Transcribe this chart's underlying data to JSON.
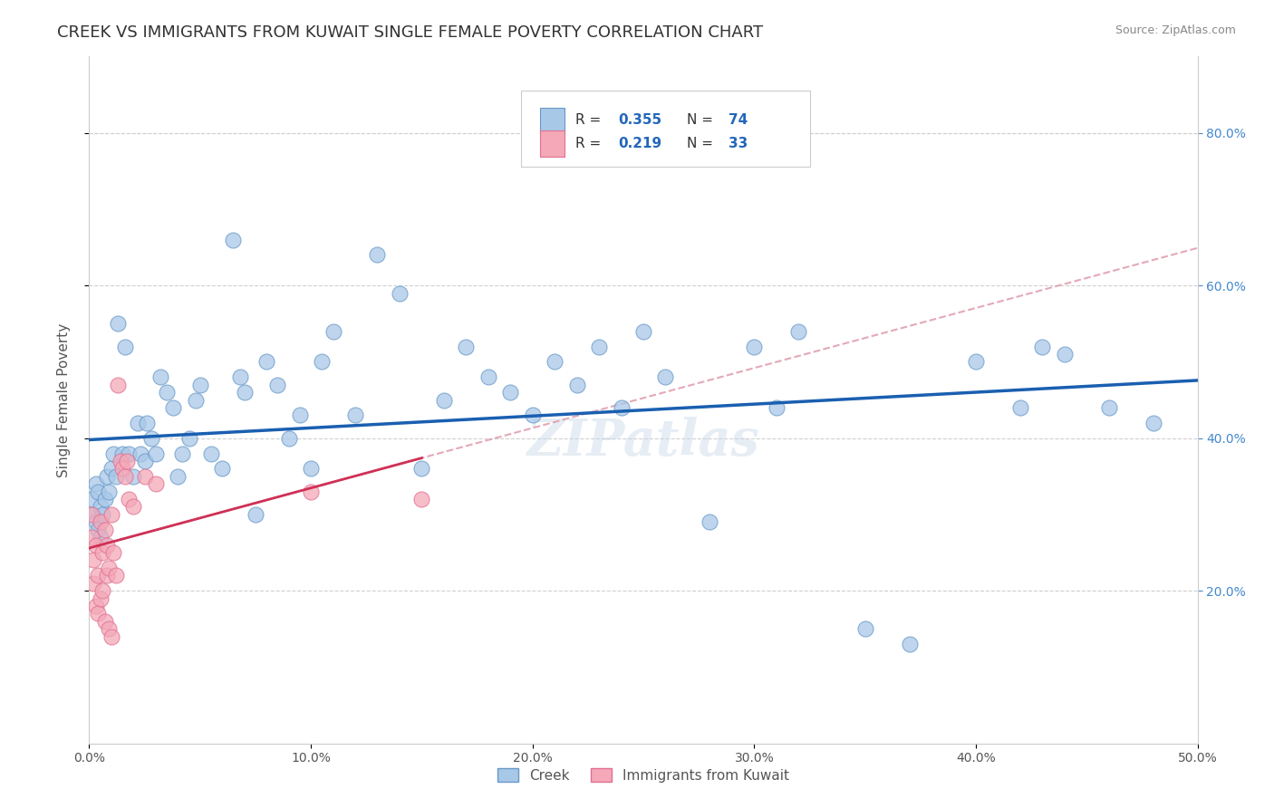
{
  "title": "CREEK VS IMMIGRANTS FROM KUWAIT SINGLE FEMALE POVERTY CORRELATION CHART",
  "source": "Source: ZipAtlas.com",
  "ylabel": "Single Female Poverty",
  "xlim": [
    0.0,
    0.5
  ],
  "ylim": [
    0.0,
    0.9
  ],
  "xtick_labels": [
    "0.0%",
    "",
    "",
    "",
    "",
    "",
    "",
    "",
    "",
    "",
    "10.0%",
    "",
    "",
    "",
    "",
    "",
    "",
    "",
    "",
    "",
    "20.0%",
    "",
    "",
    "",
    "",
    "",
    "",
    "",
    "",
    "",
    "30.0%",
    "",
    "",
    "",
    "",
    "",
    "",
    "",
    "",
    "",
    "40.0%",
    "",
    "",
    "",
    "",
    "",
    "",
    "",
    "",
    "",
    "50.0%"
  ],
  "xtick_values": [
    0.0,
    0.01,
    0.02,
    0.03,
    0.04,
    0.05,
    0.06,
    0.07,
    0.08,
    0.09,
    0.1,
    0.11,
    0.12,
    0.13,
    0.14,
    0.15,
    0.16,
    0.17,
    0.18,
    0.19,
    0.2,
    0.21,
    0.22,
    0.23,
    0.24,
    0.25,
    0.26,
    0.27,
    0.28,
    0.29,
    0.3,
    0.31,
    0.32,
    0.33,
    0.34,
    0.35,
    0.36,
    0.37,
    0.38,
    0.39,
    0.4,
    0.41,
    0.42,
    0.43,
    0.44,
    0.45,
    0.46,
    0.47,
    0.48,
    0.49,
    0.5
  ],
  "ytick_labels": [
    "20.0%",
    "40.0%",
    "60.0%",
    "80.0%"
  ],
  "ytick_values": [
    0.2,
    0.4,
    0.6,
    0.8
  ],
  "legend_label1": "Creek",
  "legend_label2": "Immigrants from Kuwait",
  "R1": "0.355",
  "N1": "74",
  "R2": "0.219",
  "N2": "33",
  "blue_color": "#a8c8e8",
  "pink_color": "#f4a8b8",
  "blue_edge": "#6898c8",
  "pink_edge": "#e07090",
  "line_blue": "#1a5fb0",
  "line_pink": "#d03055",
  "line_dashed_color": "#e0a0b0",
  "watermark": "ZIPatlas",
  "background_color": "#ffffff",
  "grid_color": "#d0d0d0",
  "title_fontsize": 13,
  "axis_label_fontsize": 11,
  "creek_x": [
    0.001,
    0.002,
    0.003,
    0.003,
    0.004,
    0.004,
    0.005,
    0.005,
    0.006,
    0.007,
    0.008,
    0.009,
    0.01,
    0.011,
    0.012,
    0.013,
    0.015,
    0.016,
    0.018,
    0.02,
    0.022,
    0.023,
    0.025,
    0.026,
    0.028,
    0.03,
    0.032,
    0.035,
    0.038,
    0.04,
    0.042,
    0.045,
    0.048,
    0.05,
    0.055,
    0.06,
    0.065,
    0.068,
    0.07,
    0.075,
    0.08,
    0.085,
    0.09,
    0.095,
    0.1,
    0.105,
    0.11,
    0.12,
    0.13,
    0.14,
    0.15,
    0.16,
    0.17,
    0.18,
    0.19,
    0.2,
    0.21,
    0.22,
    0.23,
    0.24,
    0.25,
    0.26,
    0.28,
    0.3,
    0.31,
    0.32,
    0.35,
    0.37,
    0.4,
    0.42,
    0.43,
    0.44,
    0.46,
    0.48
  ],
  "creek_y": [
    0.32,
    0.3,
    0.29,
    0.34,
    0.28,
    0.33,
    0.27,
    0.31,
    0.3,
    0.32,
    0.35,
    0.33,
    0.36,
    0.38,
    0.35,
    0.55,
    0.38,
    0.52,
    0.38,
    0.35,
    0.42,
    0.38,
    0.37,
    0.42,
    0.4,
    0.38,
    0.48,
    0.46,
    0.44,
    0.35,
    0.38,
    0.4,
    0.45,
    0.47,
    0.38,
    0.36,
    0.66,
    0.48,
    0.46,
    0.3,
    0.5,
    0.47,
    0.4,
    0.43,
    0.36,
    0.5,
    0.54,
    0.43,
    0.64,
    0.59,
    0.36,
    0.45,
    0.52,
    0.48,
    0.46,
    0.43,
    0.5,
    0.47,
    0.52,
    0.44,
    0.54,
    0.48,
    0.29,
    0.52,
    0.44,
    0.54,
    0.15,
    0.13,
    0.5,
    0.44,
    0.52,
    0.51,
    0.44,
    0.42
  ],
  "kuwait_x": [
    0.001,
    0.001,
    0.002,
    0.002,
    0.003,
    0.003,
    0.004,
    0.004,
    0.005,
    0.005,
    0.006,
    0.006,
    0.007,
    0.007,
    0.008,
    0.008,
    0.009,
    0.009,
    0.01,
    0.01,
    0.011,
    0.012,
    0.013,
    0.014,
    0.015,
    0.016,
    0.017,
    0.018,
    0.02,
    0.025,
    0.03,
    0.1,
    0.15
  ],
  "kuwait_y": [
    0.3,
    0.27,
    0.24,
    0.21,
    0.26,
    0.18,
    0.22,
    0.17,
    0.29,
    0.19,
    0.25,
    0.2,
    0.28,
    0.16,
    0.26,
    0.22,
    0.15,
    0.23,
    0.14,
    0.3,
    0.25,
    0.22,
    0.47,
    0.37,
    0.36,
    0.35,
    0.37,
    0.32,
    0.31,
    0.35,
    0.34,
    0.33,
    0.32
  ]
}
